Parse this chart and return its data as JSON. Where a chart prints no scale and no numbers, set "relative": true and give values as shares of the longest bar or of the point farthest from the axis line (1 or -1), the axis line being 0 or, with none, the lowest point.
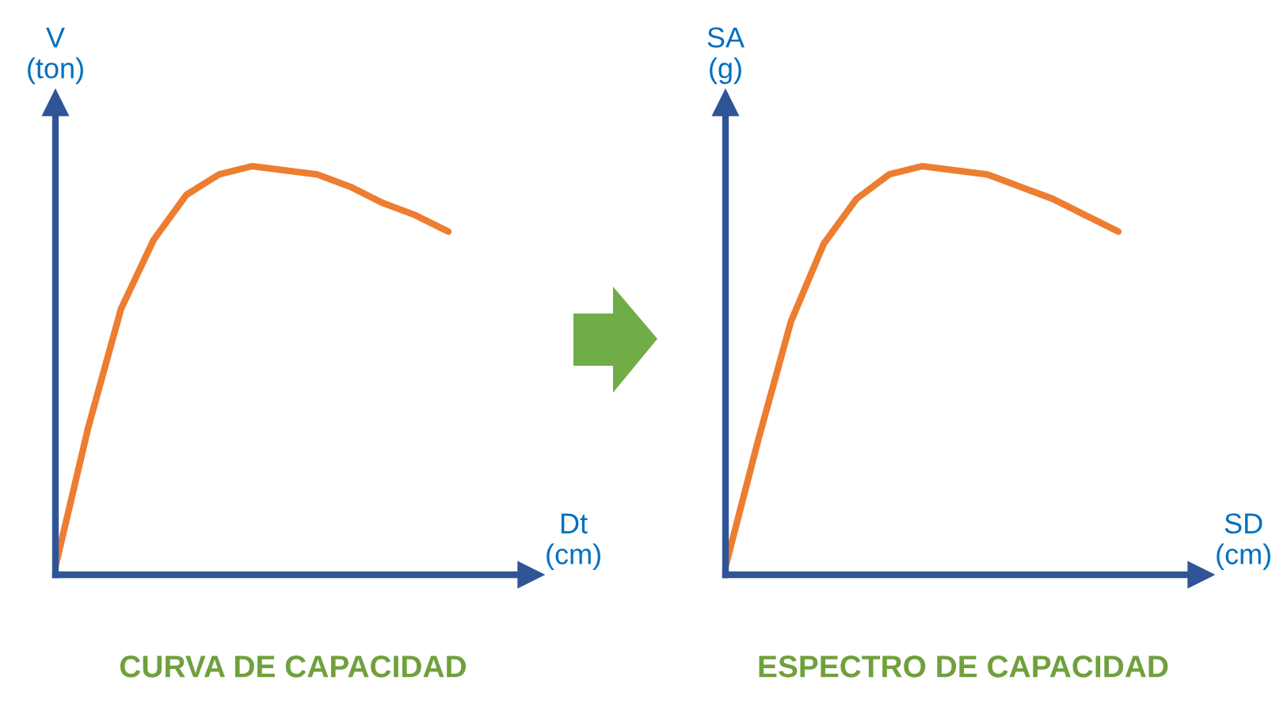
{
  "chart_data": [
    {
      "type": "line",
      "title": "CURVA DE CAPACIDAD",
      "xlabel": "Dt\n(cm)",
      "ylabel": "V\n(ton)",
      "relative": true,
      "categories": [
        null,
        null,
        null,
        null,
        null,
        null,
        null,
        null,
        null,
        null,
        null,
        null,
        null
      ],
      "series": [
        {
          "color": "#ed7d31",
          "values": [
            0.02,
            0.36,
            0.65,
            0.82,
            0.93,
            0.98,
            1.0,
            0.99,
            0.98,
            0.95,
            0.91,
            0.88,
            0.84
          ]
        }
      ]
    },
    {
      "type": "line",
      "title": "ESPECTRO DE CAPACIDAD",
      "xlabel": "SD\n(cm)",
      "ylabel": "SA\n(g)",
      "relative": true,
      "categories": [
        null,
        null,
        null,
        null,
        null,
        null,
        null,
        null,
        null,
        null,
        null,
        null,
        null
      ],
      "series": [
        {
          "color": "#ed7d31",
          "values": [
            0.02,
            0.33,
            0.62,
            0.81,
            0.92,
            0.98,
            1.0,
            0.99,
            0.98,
            0.95,
            0.92,
            0.88,
            0.84
          ]
        }
      ]
    }
  ]
}
